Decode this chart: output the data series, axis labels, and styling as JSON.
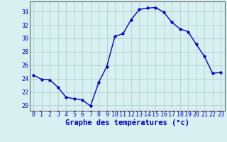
{
  "x": [
    0,
    1,
    2,
    3,
    4,
    5,
    6,
    7,
    8,
    9,
    10,
    11,
    12,
    13,
    14,
    15,
    16,
    17,
    18,
    19,
    20,
    21,
    22,
    23
  ],
  "y": [
    24.5,
    23.9,
    23.8,
    22.7,
    21.2,
    21.0,
    20.8,
    19.9,
    23.4,
    25.8,
    30.3,
    30.7,
    32.8,
    34.3,
    34.5,
    34.6,
    33.9,
    32.4,
    31.4,
    31.0,
    29.1,
    27.3,
    24.8,
    24.9
  ],
  "line_color": "#0000cc",
  "marker": "o",
  "markersize": 2.5,
  "linewidth": 1.0,
  "bg_color": "#d8f0f0",
  "grid_color": "#aacccc",
  "xlabel": "Graphe des températures (°c)",
  "xlabel_color": "#0000cc",
  "xlabel_fontsize": 7.5,
  "ylabel_ticks": [
    20,
    22,
    24,
    26,
    28,
    30,
    32,
    34
  ],
  "ylim": [
    19.2,
    35.5
  ],
  "xlim": [
    -0.5,
    23.5
  ],
  "tick_color": "#0000cc",
  "tick_fontsize": 6.0,
  "spine_color": "#666666"
}
